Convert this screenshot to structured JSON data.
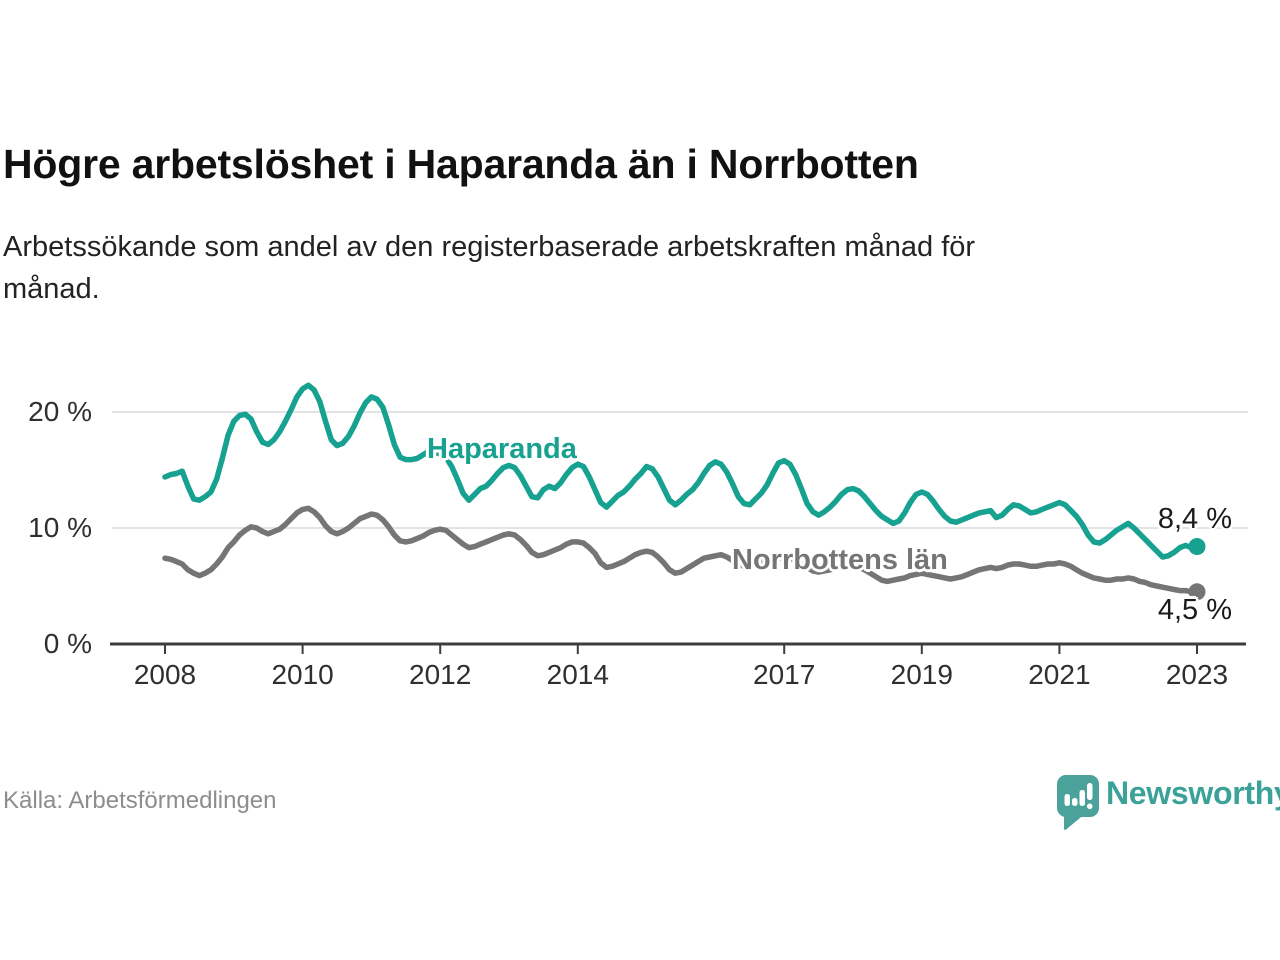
{
  "header": {
    "title": "Högre arbetslöshet i Haparanda än i Norrbotten",
    "subtitle_lines": [
      "Arbetssökande som andel av den registerbaserade arbetskraften månad för",
      "månad."
    ]
  },
  "footer": {
    "source": "Källa: Arbetsförmedlingen",
    "brand": "Newsworthy",
    "brand_color": "#3ba199",
    "logo_icon": "speech-bubble-bar-chart"
  },
  "chart_data": {
    "type": "line",
    "unit": "%",
    "frequency": "monthly",
    "x_start": "2008-01",
    "x_end": "2023-01",
    "grid": "horizontal",
    "legend": "inline-labels",
    "ylim": [
      0,
      23
    ],
    "y_axis": {
      "ticks": [
        {
          "value": 0,
          "label": "0 %"
        },
        {
          "value": 10,
          "label": "10 %"
        },
        {
          "value": 20,
          "label": "20 %"
        }
      ]
    },
    "x_axis": {
      "ticks": [
        {
          "year": 2008,
          "label": "2008"
        },
        {
          "year": 2010,
          "label": "2010"
        },
        {
          "year": 2012,
          "label": "2012"
        },
        {
          "year": 2014,
          "label": "2014"
        },
        {
          "year": 2017,
          "label": "2017"
        },
        {
          "year": 2019,
          "label": "2019"
        },
        {
          "year": 2021,
          "label": "2021"
        },
        {
          "year": 2023,
          "label": "2023"
        }
      ]
    },
    "series": [
      {
        "name": "Haparanda",
        "color": "#17a191",
        "end_label": "8,4 %",
        "end_value": 8.4,
        "values": [
          14.4,
          14.6,
          14.7,
          14.9,
          13.6,
          12.5,
          12.4,
          12.7,
          13.1,
          14.2,
          16.0,
          18.0,
          19.2,
          19.7,
          19.8,
          19.4,
          18.3,
          17.4,
          17.2,
          17.6,
          18.3,
          19.2,
          20.2,
          21.3,
          22.0,
          22.3,
          21.9,
          20.9,
          19.2,
          17.6,
          17.1,
          17.3,
          17.9,
          18.8,
          19.9,
          20.8,
          21.3,
          21.1,
          20.4,
          18.9,
          17.2,
          16.1,
          15.9,
          15.9,
          16.0,
          16.3,
          16.6,
          16.5,
          16.4,
          16.1,
          15.3,
          14.2,
          13.0,
          12.4,
          12.9,
          13.4,
          13.6,
          14.1,
          14.7,
          15.2,
          15.4,
          15.2,
          14.5,
          13.6,
          12.7,
          12.6,
          13.3,
          13.6,
          13.4,
          13.9,
          14.6,
          15.2,
          15.5,
          15.3,
          14.4,
          13.3,
          12.2,
          11.8,
          12.3,
          12.8,
          13.1,
          13.6,
          14.2,
          14.7,
          15.3,
          15.1,
          14.4,
          13.4,
          12.4,
          12.0,
          12.4,
          12.9,
          13.3,
          13.9,
          14.7,
          15.4,
          15.7,
          15.5,
          14.8,
          13.8,
          12.7,
          12.1,
          12.0,
          12.5,
          13.0,
          13.7,
          14.7,
          15.6,
          15.8,
          15.5,
          14.6,
          13.4,
          12.1,
          11.4,
          11.1,
          11.4,
          11.8,
          12.3,
          12.9,
          13.3,
          13.4,
          13.2,
          12.7,
          12.1,
          11.5,
          11.0,
          10.7,
          10.4,
          10.6,
          11.3,
          12.2,
          12.9,
          13.1,
          12.9,
          12.3,
          11.6,
          11.0,
          10.6,
          10.5,
          10.7,
          10.9,
          11.1,
          11.3,
          11.4,
          11.5,
          10.9,
          11.1,
          11.6,
          12.0,
          11.9,
          11.6,
          11.3,
          11.4,
          11.6,
          11.8,
          12.0,
          12.2,
          12.0,
          11.5,
          11.0,
          10.3,
          9.4,
          8.8,
          8.7,
          9.0,
          9.4,
          9.8,
          10.1,
          10.4,
          10.0,
          9.5,
          9.0,
          8.5,
          8.0,
          7.5,
          7.6,
          7.9,
          8.3,
          8.5,
          8.3,
          8.4
        ]
      },
      {
        "name": "Norrbottens län",
        "color": "#757575",
        "end_label": "4,5 %",
        "end_value": 4.5,
        "values": [
          7.4,
          7.3,
          7.1,
          6.9,
          6.4,
          6.1,
          5.9,
          6.1,
          6.4,
          6.9,
          7.5,
          8.3,
          8.8,
          9.4,
          9.8,
          10.1,
          10.0,
          9.7,
          9.5,
          9.7,
          9.9,
          10.3,
          10.8,
          11.3,
          11.6,
          11.7,
          11.4,
          10.9,
          10.2,
          9.7,
          9.5,
          9.7,
          10.0,
          10.4,
          10.8,
          11.0,
          11.2,
          11.1,
          10.7,
          10.1,
          9.4,
          8.9,
          8.8,
          8.9,
          9.1,
          9.3,
          9.6,
          9.8,
          9.9,
          9.8,
          9.4,
          9.0,
          8.6,
          8.3,
          8.4,
          8.6,
          8.8,
          9.0,
          9.2,
          9.4,
          9.5,
          9.4,
          9.0,
          8.5,
          7.9,
          7.6,
          7.7,
          7.9,
          8.1,
          8.3,
          8.6,
          8.8,
          8.8,
          8.7,
          8.3,
          7.8,
          7.0,
          6.6,
          6.7,
          6.9,
          7.1,
          7.4,
          7.7,
          7.9,
          8.0,
          7.9,
          7.5,
          7.0,
          6.4,
          6.1,
          6.2,
          6.5,
          6.8,
          7.1,
          7.4,
          7.5,
          7.6,
          7.7,
          7.5,
          7.2,
          6.9,
          6.7,
          6.8,
          7.0,
          7.1,
          7.2,
          7.3,
          7.4,
          7.5,
          7.4,
          7.2,
          6.9,
          6.6,
          6.3,
          6.2,
          6.3,
          6.4,
          6.5,
          6.6,
          6.7,
          6.7,
          6.6,
          6.4,
          6.1,
          5.8,
          5.5,
          5.4,
          5.5,
          5.6,
          5.7,
          5.9,
          6.0,
          6.1,
          6.0,
          5.9,
          5.8,
          5.7,
          5.6,
          5.7,
          5.8,
          6.0,
          6.2,
          6.4,
          6.5,
          6.6,
          6.5,
          6.6,
          6.8,
          6.9,
          6.9,
          6.8,
          6.7,
          6.7,
          6.8,
          6.9,
          6.9,
          7.0,
          6.9,
          6.7,
          6.4,
          6.1,
          5.9,
          5.7,
          5.6,
          5.5,
          5.5,
          5.6,
          5.6,
          5.7,
          5.6,
          5.4,
          5.3,
          5.1,
          5.0,
          4.9,
          4.8,
          4.7,
          4.6,
          4.6,
          4.5,
          4.5
        ]
      }
    ]
  }
}
